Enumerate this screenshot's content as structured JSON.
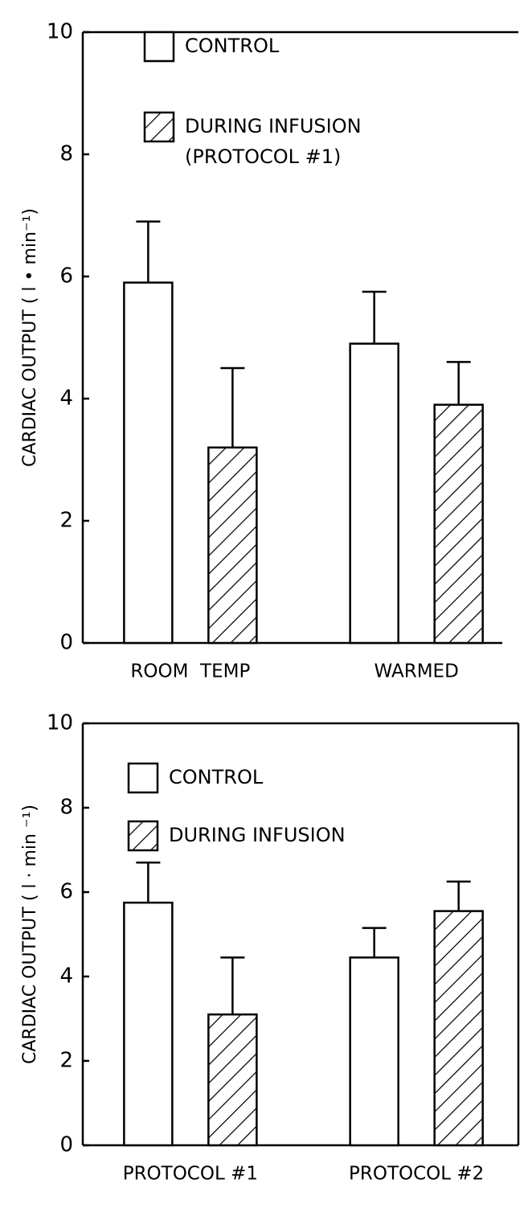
{
  "chart_data": [
    {
      "type": "bar",
      "y_label": "CARDIAC OUTPUT ( l • min⁻¹)",
      "categories": [
        "ROOM  TEMP",
        "WARMED"
      ],
      "series": [
        {
          "name": "CONTROL",
          "color": "#ffffff",
          "hatch": false,
          "values": [
            5.9,
            4.9
          ],
          "errors": [
            1.0,
            0.85
          ]
        },
        {
          "name": "DURING INFUSION",
          "color": "#ffffff",
          "hatch": true,
          "values": [
            3.2,
            3.9
          ],
          "errors": [
            1.3,
            0.7
          ]
        }
      ],
      "legend_note": "(PROTOCOL #1)",
      "ylim": [
        0,
        10
      ],
      "yticks": [
        0,
        2,
        4,
        6,
        8,
        10
      ],
      "box": false
    },
    {
      "type": "bar",
      "y_label": "CARDIAC OUTPUT ( l · min ⁻¹)",
      "categories": [
        "PROTOCOL #1",
        "PROTOCOL #2"
      ],
      "series": [
        {
          "name": "CONTROL",
          "color": "#ffffff",
          "hatch": false,
          "values": [
            5.75,
            4.45
          ],
          "errors": [
            0.95,
            0.7
          ]
        },
        {
          "name": "DURING INFUSION",
          "color": "#ffffff",
          "hatch": true,
          "values": [
            3.1,
            5.55
          ],
          "errors": [
            1.35,
            0.7
          ]
        }
      ],
      "ylim": [
        0,
        10
      ],
      "yticks": [
        0,
        2,
        4,
        6,
        8,
        10
      ],
      "box": true
    }
  ]
}
